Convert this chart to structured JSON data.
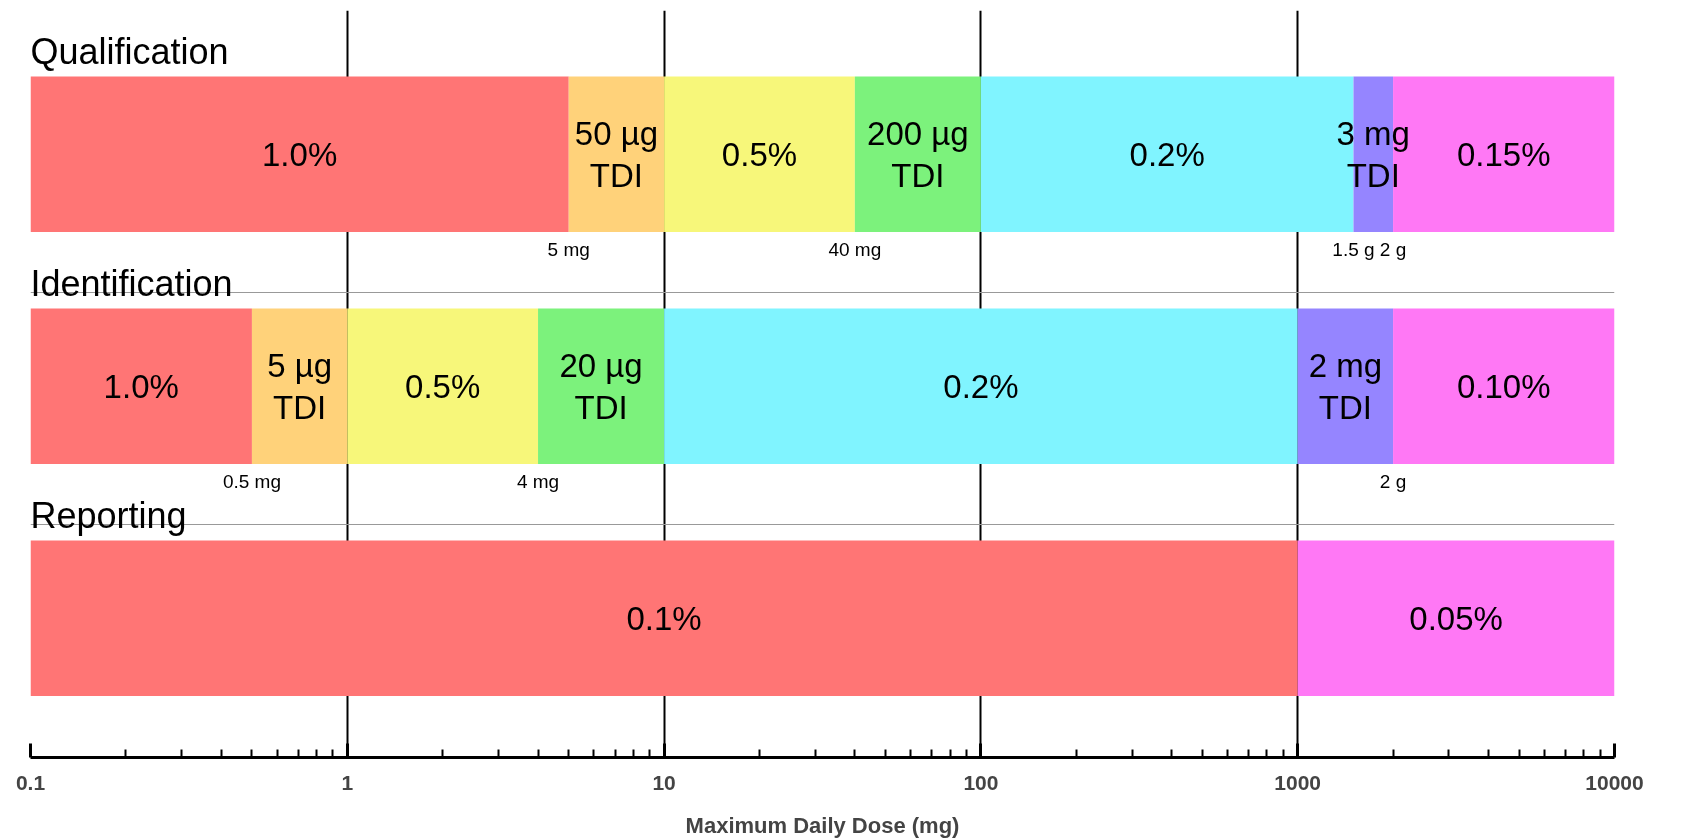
{
  "chart_data": {
    "type": "bar",
    "orientation": "horizontal",
    "xlabel": "Maximum Daily Dose (mg)",
    "categories": [
      "Qualification",
      "Identification",
      "Reporting"
    ],
    "log": "x",
    "xlim": [
      0.1,
      10000
    ],
    "xticks": [
      0.1,
      1,
      10,
      100,
      1000,
      10000
    ],
    "grid": true,
    "series": [
      {
        "color": "#ff7575",
        "base": [
          0.1,
          0.1,
          0.1
        ],
        "values": [
          4.9,
          0.4,
          999.9
        ]
      },
      {
        "color": "#ffd27a",
        "base": [
          5,
          0.5,
          null
        ],
        "values": [
          5,
          0.5,
          null
        ]
      },
      {
        "color": "#f7f77a",
        "base": [
          10,
          1,
          null
        ],
        "values": [
          30,
          3,
          null
        ]
      },
      {
        "color": "#7cf27c",
        "base": [
          40,
          4,
          null
        ],
        "values": [
          60,
          6,
          null
        ]
      },
      {
        "color": "#80f4ff",
        "base": [
          100,
          10,
          null
        ],
        "values": [
          1400,
          990,
          null
        ]
      },
      {
        "color": "#9585ff",
        "base": [
          1500,
          1000,
          null
        ],
        "values": [
          500,
          1000,
          null
        ]
      },
      {
        "color": "#ff78f5",
        "base": [
          2000,
          2000,
          1000
        ],
        "values": [
          8000,
          8000,
          9000
        ]
      }
    ],
    "annotations": [
      "1.0%",
      "50 µg\nTDI",
      "0.5%",
      "200 µg\nTDI",
      "0.2%",
      "3 mg\nTDI",
      "0.15%",
      "1.0%",
      "5 µg\nTDI",
      "0.5%",
      "20 µg\nTDI",
      "0.2%",
      "2 mg\nTDI",
      "0.10%",
      "0.1%",
      "0.05%",
      "5 mg",
      "40 mg",
      "1.5 g",
      "2 g",
      "0.5 mg",
      "4 mg",
      "2 g"
    ]
  }
}
